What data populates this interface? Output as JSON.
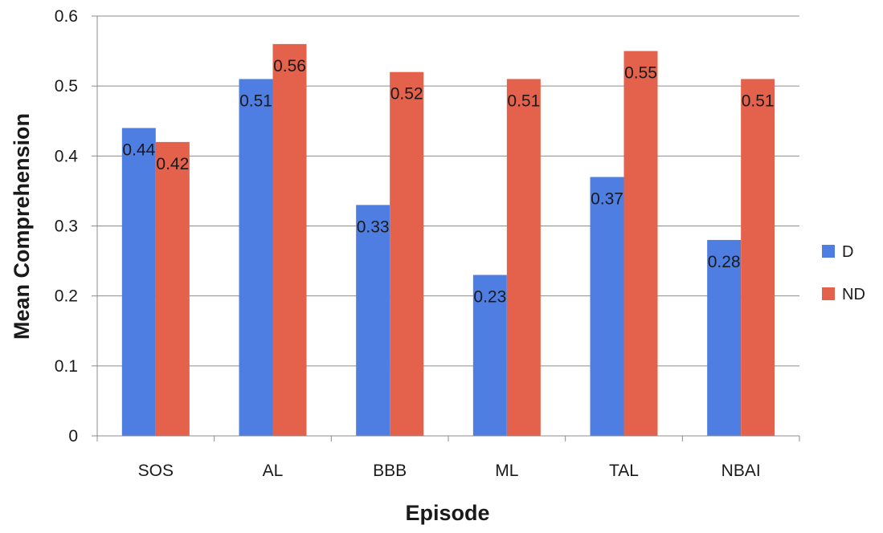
{
  "chart_data": {
    "type": "bar",
    "title": "",
    "xlabel": "Episode",
    "ylabel": "Mean  Comprehension",
    "categories": [
      "SOS",
      "AL",
      "BBB",
      "ML",
      "TAL",
      "NBAI"
    ],
    "series": [
      {
        "name": "D",
        "color": "#4f7ee3",
        "values": [
          0.44,
          0.51,
          0.33,
          0.23,
          0.37,
          0.28
        ],
        "labels": [
          "0.44",
          "0.51",
          "0.33",
          "0.23",
          "0.37",
          "0.28"
        ]
      },
      {
        "name": "ND",
        "color": "#e4614b",
        "values": [
          0.42,
          0.56,
          0.52,
          0.51,
          0.55,
          0.51
        ],
        "labels": [
          "0.42",
          "0.56",
          "0.52",
          "0.51",
          "0.55",
          "0.51"
        ]
      }
    ],
    "ylim": [
      0,
      0.6
    ],
    "yticks": [
      0,
      0.1,
      0.2,
      0.3,
      0.4,
      0.5,
      0.6
    ],
    "ytick_labels": [
      "0",
      "0.1",
      "0.2",
      "0.3",
      "0.4",
      "0.5",
      "0.6"
    ],
    "grid": true,
    "legend_position": "right"
  }
}
